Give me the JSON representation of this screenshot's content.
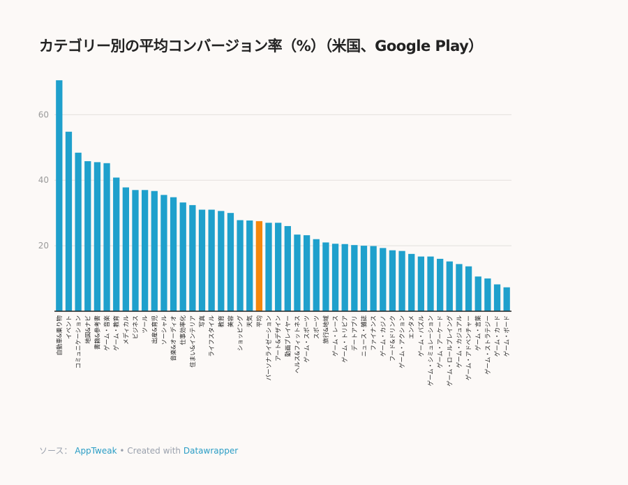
{
  "title": "カテゴリー別の平均コンバージョン率（%）（米国、Google Play）",
  "footer": {
    "source_prefix": "ソース：",
    "source": "AppTweak",
    "separator": "•",
    "created_with": "Created with",
    "tool": "Datawrapper"
  },
  "colors": {
    "bar": "#1fa0cc",
    "highlight": "#f5870c",
    "grid": "#e3e0dd",
    "axis": "#222222"
  },
  "chart_data": {
    "type": "bar",
    "title": "カテゴリー別の平均コンバージョン率（%）（米国、Google Play）",
    "xlabel": "",
    "ylabel": "",
    "ylim": [
      0,
      72
    ],
    "yticks": [
      20,
      40,
      60
    ],
    "grid": true,
    "highlight_category": "平均",
    "categories": [
      "自動車&乗り物",
      "イベント",
      "コミュニケーション",
      "地図&ナビ",
      "書籍&参考書",
      "ゲーム・音楽",
      "ゲーム・教育",
      "メディカル",
      "ビジネス",
      "ツール",
      "出産&育児",
      "ソーシャル",
      "音楽&オーディオ",
      "仕事効率化",
      "住まい&インテリア",
      "写真",
      "ライフスタイル",
      "教育",
      "美容",
      "ショッピング",
      "天気",
      "平均",
      "パーソナライゼーション",
      "アート&デザイン",
      "動画プレイヤー",
      "ヘルス&フィットネス",
      "ゲーム・スポーツ",
      "スポーツ",
      "旅行&地域",
      "ゲーム・レース",
      "ゲーム・トリビア",
      "デートアプリ",
      "ニュース・雑誌",
      "ファイナンス",
      "ゲーム・カジノ",
      "フード&ドリンク",
      "ゲーム・アクション",
      "エンタメ",
      "ゲーム・パズル",
      "ゲーム・シミュレーション",
      "ゲーム・アーケード",
      "ゲーム・ロールプレイング",
      "ゲーム・カジュアル",
      "ゲーム・アドベンチャー",
      "ゲーム・言葉",
      "ゲーム・ストラテジー",
      "ゲーム・カード",
      "ゲーム・ボード"
    ],
    "values": [
      70.5,
      54.8,
      48.4,
      45.8,
      45.5,
      45.2,
      40.8,
      37.8,
      37.0,
      37.0,
      36.7,
      35.5,
      34.8,
      33.2,
      32.4,
      31.0,
      31.0,
      30.6,
      30.0,
      27.8,
      27.7,
      27.5,
      27.0,
      27.0,
      26.0,
      23.4,
      23.2,
      22.0,
      21.0,
      20.6,
      20.5,
      20.2,
      20.0,
      19.9,
      19.3,
      18.6,
      18.4,
      17.5,
      16.7,
      16.7,
      16.0,
      15.2,
      14.4,
      13.7,
      10.6,
      10.0,
      8.2,
      7.3
    ]
  }
}
